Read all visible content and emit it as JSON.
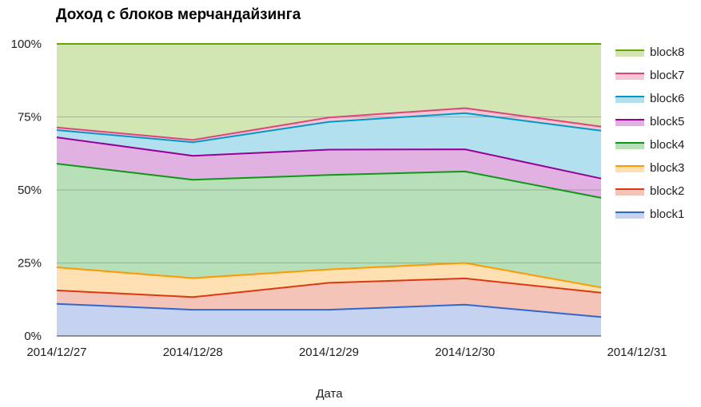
{
  "chart_data": {
    "type": "area",
    "stacked": true,
    "normalized_percent": true,
    "title": "Доход с блоков мерчандайзинга",
    "xlabel": "Дата",
    "ylabel": "",
    "x": [
      "2014/12/27",
      "2014/12/28",
      "2014/12/29",
      "2014/12/30",
      "2014/12/31"
    ],
    "yticks": [
      "0%",
      "25%",
      "50%",
      "75%",
      "100%"
    ],
    "ylim": [
      0,
      100
    ],
    "grid": true,
    "legend_position": "right",
    "series": [
      {
        "name": "block1",
        "color": "#3366cc",
        "fill": "#c5d3f0",
        "values": [
          11,
          9,
          9,
          10.7,
          6.5
        ]
      },
      {
        "name": "block2",
        "color": "#dc3912",
        "fill": "#f4c4b8",
        "values": [
          4.6,
          4.3,
          9.2,
          9,
          8.3
        ]
      },
      {
        "name": "block3",
        "color": "#ff9900",
        "fill": "#ffe0b2",
        "values": [
          7.9,
          6.5,
          4.6,
          5.3,
          1.8
        ]
      },
      {
        "name": "block4",
        "color": "#109618",
        "fill": "#b7e0b9",
        "values": [
          35.5,
          33.7,
          32.3,
          31.3,
          30.7
        ]
      },
      {
        "name": "block5",
        "color": "#990099",
        "fill": "#e1b2e1",
        "values": [
          9,
          8.2,
          8.7,
          7.6,
          6.6
        ]
      },
      {
        "name": "block6",
        "color": "#0099c6",
        "fill": "#b2e0ee",
        "values": [
          2.5,
          4.6,
          9.5,
          12.4,
          16.4
        ]
      },
      {
        "name": "block7",
        "color": "#dd4477",
        "fill": "#f5c6d6",
        "values": [
          0.9,
          0.8,
          1.5,
          1.7,
          1.4
        ]
      },
      {
        "name": "block8",
        "color": "#66aa00",
        "fill": "#d1e6b2",
        "values": [
          28.6,
          32.9,
          25.2,
          22,
          28.3
        ]
      }
    ]
  }
}
